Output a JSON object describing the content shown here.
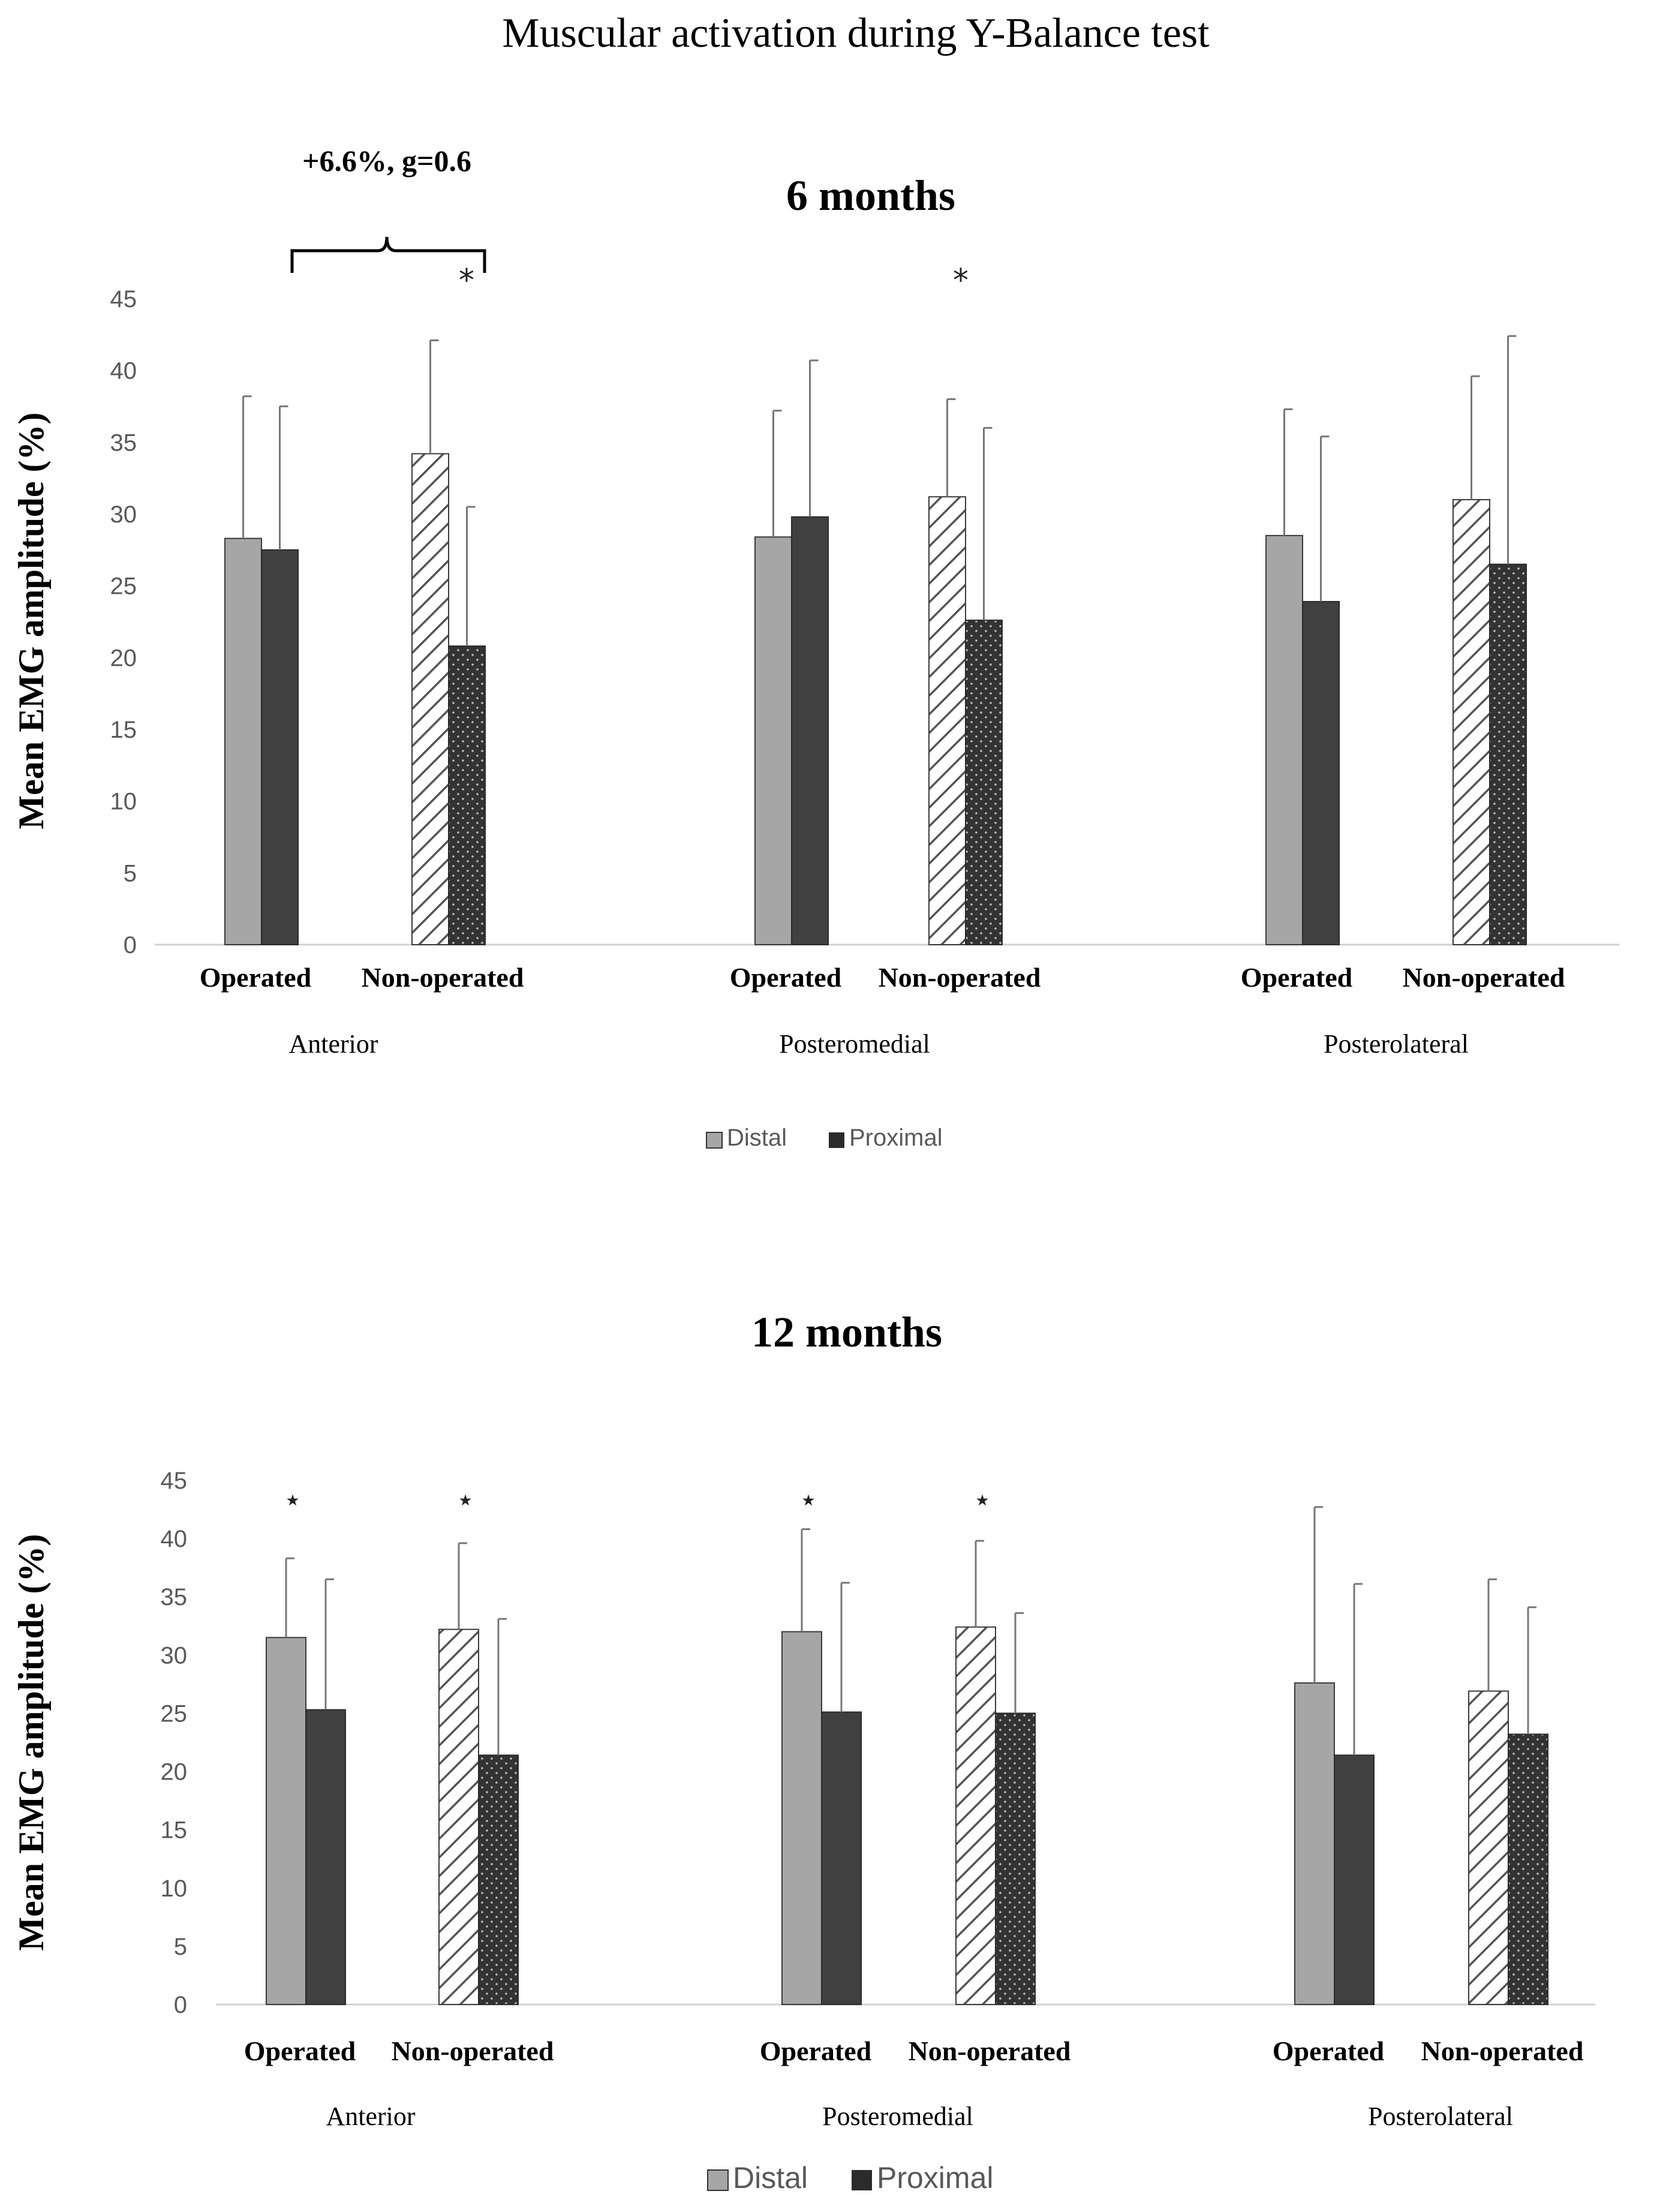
{
  "main_title": "Muscular activation during Y-Balance test",
  "chart_data": [
    {
      "type": "bar",
      "title": "6 months",
      "ylabel": "Mean EMG amplitude (%)",
      "ylim": [
        0,
        45
      ],
      "yticks": [
        "0",
        "5",
        "10",
        "15",
        "20",
        "25",
        "30",
        "35",
        "40",
        "45"
      ],
      "sections": [
        "Anterior",
        "Posteromedial",
        "Posterolateral"
      ],
      "groups": [
        "Operated",
        "Non-operated",
        "Operated",
        "Non-operated",
        "Operated",
        "Non-operated"
      ],
      "series": [
        {
          "name": "Distal",
          "values": [
            28.3,
            34.2,
            28.4,
            31.2,
            28.5,
            31.0
          ],
          "errors": [
            9.9,
            7.9,
            8.8,
            6.8,
            8.8,
            8.6
          ]
        },
        {
          "name": "Proximal",
          "values": [
            27.5,
            20.8,
            29.8,
            22.6,
            23.9,
            26.5
          ],
          "errors": [
            10.0,
            9.7,
            10.9,
            13.4,
            11.5,
            15.9
          ]
        }
      ],
      "significance": [
        {
          "label": "*",
          "group": 1
        },
        {
          "label": "*",
          "group": 3
        }
      ],
      "annotation": "+6.6%, g=0.6",
      "legend": [
        "Distal",
        "Proximal"
      ]
    },
    {
      "type": "bar",
      "title": "12 months",
      "ylabel": "Mean EMG amplitude (%)",
      "ylim": [
        0,
        45
      ],
      "yticks": [
        "0",
        "5",
        "10",
        "15",
        "20",
        "25",
        "30",
        "35",
        "40",
        "45"
      ],
      "sections": [
        "Anterior",
        "Posteromedial",
        "Posterolateral"
      ],
      "groups": [
        "Operated",
        "Non-operated",
        "Operated",
        "Non-operated",
        "Operated",
        "Non-operated"
      ],
      "series": [
        {
          "name": "Distal",
          "values": [
            31.5,
            32.2,
            32.0,
            32.4,
            27.6,
            26.9
          ],
          "errors": [
            6.8,
            7.4,
            8.8,
            7.4,
            15.1,
            9.6
          ]
        },
        {
          "name": "Proximal",
          "values": [
            25.3,
            21.4,
            25.1,
            25.0,
            21.4,
            23.2
          ],
          "errors": [
            11.2,
            11.7,
            11.1,
            8.6,
            14.7,
            10.9
          ]
        }
      ],
      "significance": [
        {
          "label": "⋆",
          "group": 0
        },
        {
          "label": "⋆",
          "group": 1
        },
        {
          "label": "⋆",
          "group": 2
        },
        {
          "label": "⋆",
          "group": 3
        }
      ],
      "legend": [
        "Distal",
        "Proximal"
      ]
    }
  ]
}
